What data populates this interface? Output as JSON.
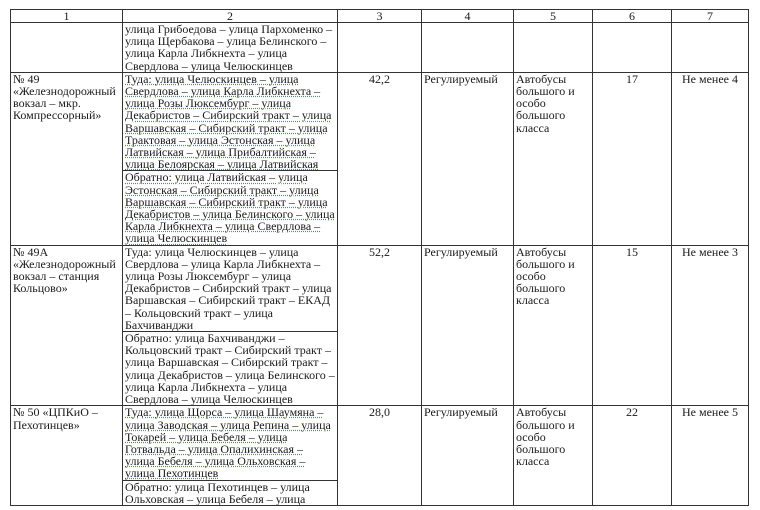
{
  "header": [
    "1",
    "2",
    "3",
    "4",
    "5",
    "6",
    "7"
  ],
  "continuation": {
    "path": "улица Грибоедова – улица Пархоменко –улица Щербакова – улица Белинского – улица Карла Либкнехта – улица Свердлова – улица Челюскинцев"
  },
  "routes": [
    {
      "name": "№ 49 «Железнодорожный вокзал – мкр. Компрессорный»",
      "forward": "Туда: улица Челюскинцев – улица Свердлова – улица Карла Либкнехта – улица Розы Люксембург – улица Декабристов – Сибирский тракт – улица Варшавская – Сибирский тракт – улица Трактовая – улица Эстонская – улица Латвийская – улица Прибалтийская – улица Белоярская – улица Латвийская",
      "backward": "Обратно: улица Латвийская – улица Эстонская – Сибирский тракт – улица Варшавская – Сибирский тракт – улица Декабристов – улица Белинского – улица Карла Либкнехта – улица Свердлова – улица Челюскинцев",
      "length": "42,2",
      "mode": "Регулируемый",
      "vehicle": "Автобусы большого и особо большого класса",
      "count": "17",
      "interval": "Не менее 4"
    },
    {
      "name": "№ 49А «Железнодорожный вокзал – станция Кольцово»",
      "forward": "Туда: улица Челюскинцев – улица Свердлова – улица Карла Либкнехта – улица Розы Люксембург – улица Декабристов – Сибирский тракт – улица Варшавская – Сибирский тракт – ЕКАД – Кольцовский тракт – улица Бахчиванджи",
      "backward": "Обратно: улица Бахчиванджи – Кольцовский тракт – Сибирский тракт – улица Варшавская – Сибирский тракт – улица Декабристов – улица Белинского – улица Карла Либкнехта – улица Свердлова – улица Челюскинцев",
      "length": "52,2",
      "mode": "Регулируемый",
      "vehicle": "Автобусы большого и особо большого класса",
      "count": "15",
      "interval": "Не менее 3"
    },
    {
      "name": "№ 50 «ЦПКиО – Пехотинцев»",
      "forward": "Туда: улица Щорса – улица Шаумяна – улица Заводская – улица Репина – улица Токарей – улица Бебеля – улица Готвальда – улица Опалихинская – улица Бебеля – улица Ольховская – улица Пехотинцев",
      "backward": "Обратно: улица Пехотинцев – улица Ольховская – улица Бебеля – улица",
      "length": "28,0",
      "mode": "Регулируемый",
      "vehicle": "Автобусы большого и особо большого класса",
      "count": "22",
      "interval": "Не менее 5"
    }
  ]
}
